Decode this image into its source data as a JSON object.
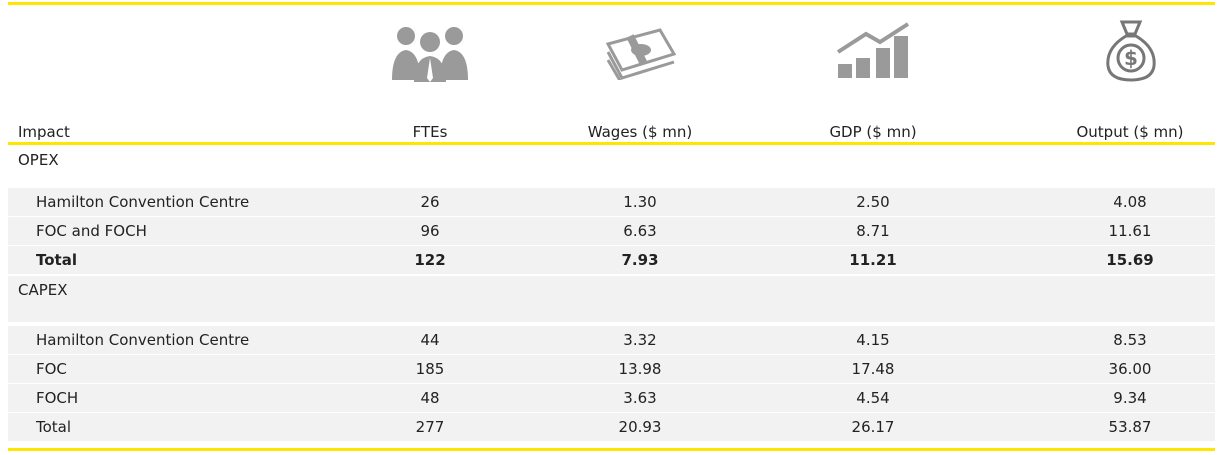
{
  "table": {
    "headers": [
      "Impact",
      "FTEs",
      "Wages ($ mn)",
      "GDP ($ mn)",
      "Output ($ mn)"
    ],
    "sections": [
      {
        "label": "OPEX",
        "rows": [
          {
            "cells": [
              "Hamilton Convention Centre",
              "26",
              "1.30",
              "2.50",
              "4.08"
            ]
          },
          {
            "cells": [
              "FOC and FOCH",
              "96",
              "6.63",
              "8.71",
              "11.61"
            ]
          },
          {
            "cells": [
              "Total",
              "122",
              "7.93",
              "11.21",
              "15.69"
            ],
            "bold": true
          }
        ]
      },
      {
        "label": "CAPEX",
        "rows": [
          {
            "cells": [
              "Hamilton Convention Centre",
              "44",
              "3.32",
              "4.15",
              "8.53"
            ]
          },
          {
            "cells": [
              "FOC",
              "185",
              "13.98",
              "17.48",
              "36.00"
            ]
          },
          {
            "cells": [
              "FOCH",
              "48",
              "3.63",
              "4.54",
              "9.34"
            ]
          },
          {
            "cells": [
              "Total",
              "277",
              "20.93",
              "26.17",
              "53.87"
            ]
          }
        ]
      }
    ]
  }
}
